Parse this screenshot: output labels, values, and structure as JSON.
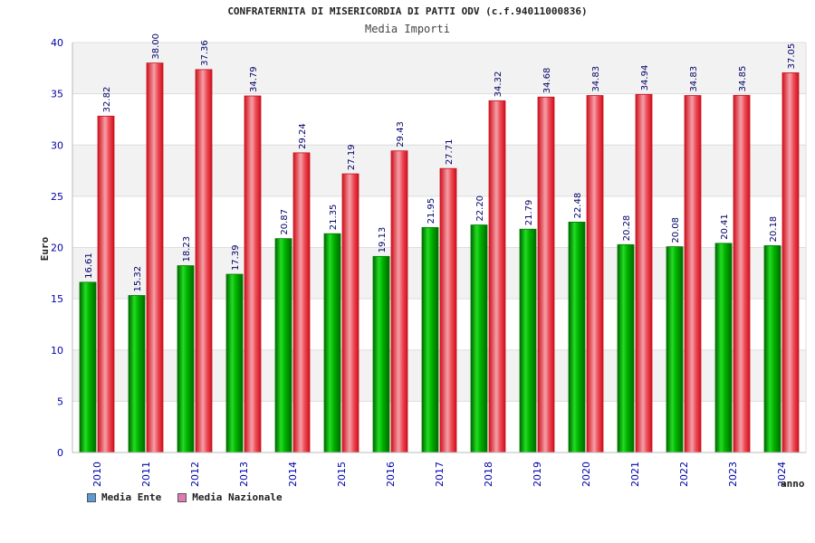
{
  "chart_data": {
    "type": "bar",
    "title": "CONFRATERNITA DI MISERICORDIA DI PATTI ODV (c.f.94011000836)",
    "subtitle": "Media Importi",
    "xlabel": "anno",
    "ylabel": "Euro",
    "ylim": [
      0,
      40
    ],
    "yticks": [
      0,
      5,
      10,
      15,
      20,
      25,
      30,
      35,
      40
    ],
    "categories": [
      "2010",
      "2011",
      "2012",
      "2013",
      "2014",
      "2015",
      "2016",
      "2017",
      "2018",
      "2019",
      "2020",
      "2021",
      "2022",
      "2023",
      "2024"
    ],
    "series": [
      {
        "name": "Media Ente",
        "values": [
          16.61,
          15.32,
          18.23,
          17.39,
          20.87,
          21.35,
          19.13,
          21.95,
          22.2,
          21.79,
          22.48,
          20.28,
          20.08,
          20.41,
          20.18
        ],
        "labels": [
          "16.61",
          "15.32",
          "18.23",
          "17.39",
          "20.87",
          "21.35",
          "19.13",
          "21.95",
          "22.20",
          "21.79",
          "22.48",
          "20.28",
          "20.08",
          "20.41",
          "20.18"
        ],
        "color": "#00b400",
        "legend_color": "#5b9bd5"
      },
      {
        "name": "Media Nazionale",
        "values": [
          32.82,
          38.0,
          37.36,
          34.79,
          29.24,
          27.19,
          29.43,
          27.71,
          34.32,
          34.68,
          34.83,
          34.94,
          34.83,
          34.85,
          37.05
        ],
        "labels": [
          "32.82",
          "38.00",
          "37.36",
          "34.79",
          "29.24",
          "27.19",
          "29.43",
          "27.71",
          "34.32",
          "34.68",
          "34.83",
          "34.94",
          "34.83",
          "34.85",
          "37.05"
        ],
        "color": "#e81c2c",
        "legend_color": "#e07ab0"
      }
    ],
    "legend_position": "bottom-left"
  }
}
